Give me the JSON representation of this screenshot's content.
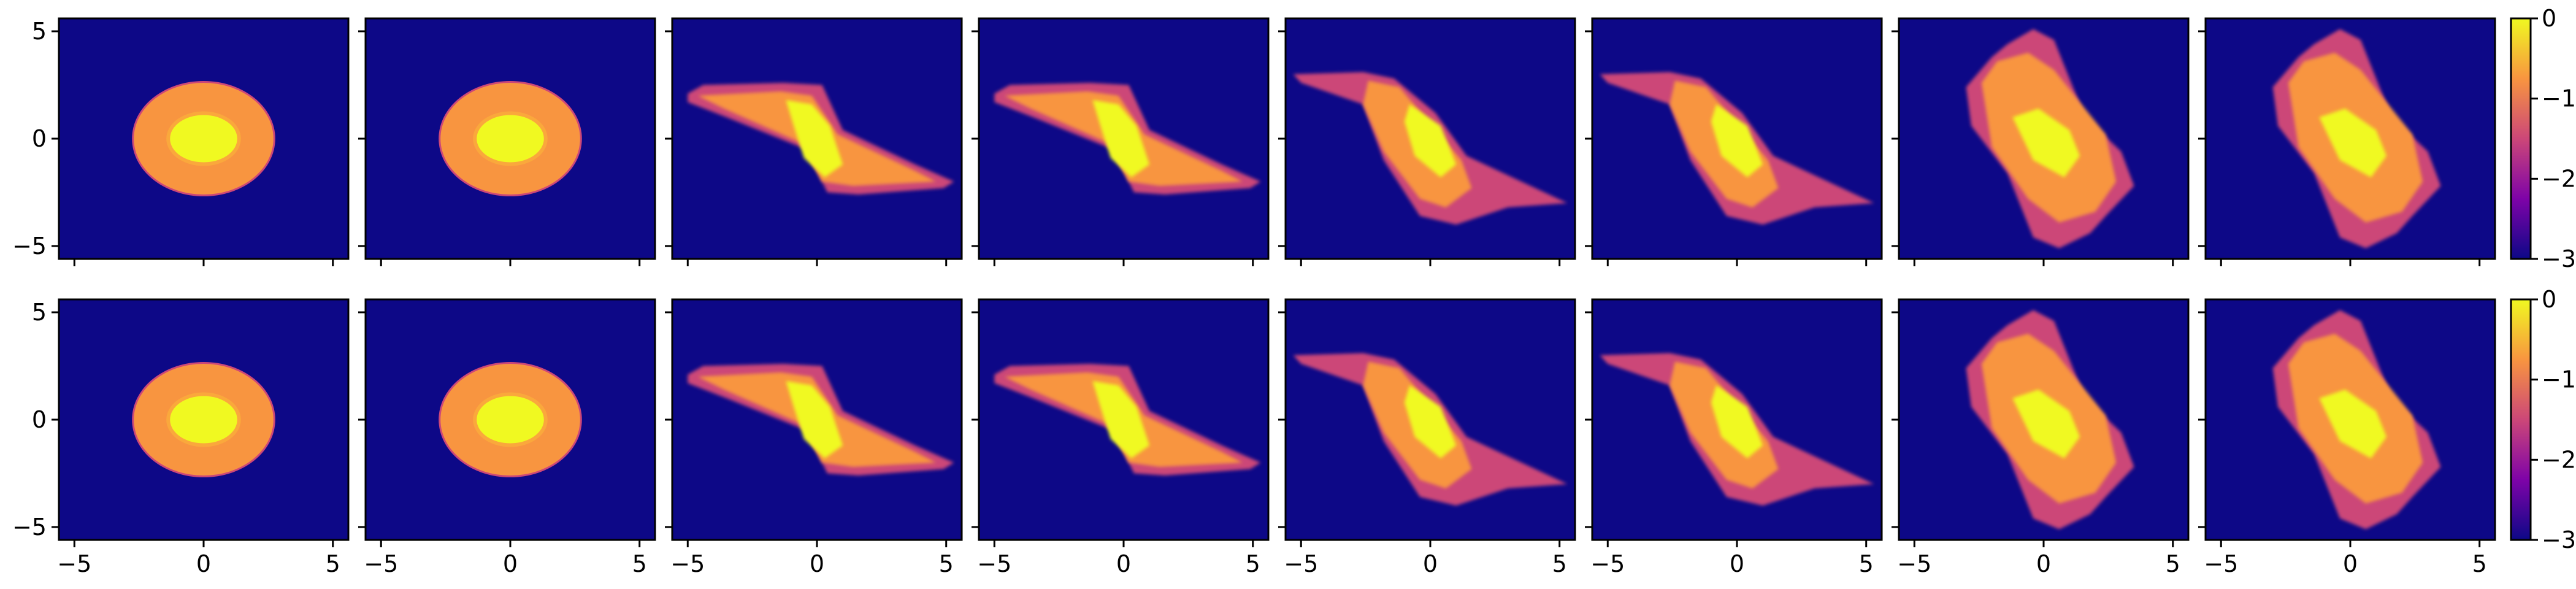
{
  "chart_data": {
    "type": "heatmap",
    "layout": {
      "rows": 2,
      "cols": 8,
      "sharex": true,
      "sharey": true
    },
    "colormap": "plasma",
    "color_stops": [
      "#0d0887",
      "#7e03a8",
      "#cc4778",
      "#f89540",
      "#f0f921"
    ],
    "background_color": "#0d0887",
    "color_scale": {
      "min": -3,
      "max": 0,
      "ticks": [
        0,
        -1,
        -2,
        -3
      ],
      "tick_labels": [
        "0",
        "−1",
        "−2",
        "−3"
      ]
    },
    "xlim": [
      -5.6,
      5.6
    ],
    "ylim": [
      -5.6,
      5.6
    ],
    "x_ticks": [
      -5,
      0,
      5
    ],
    "x_tick_labels": [
      "−5",
      "0",
      "5"
    ],
    "y_ticks": [
      5,
      0,
      -5
    ],
    "y_tick_labels": [
      "5",
      "0",
      "−5"
    ],
    "panels_per_row": [
      [
        {
          "shape": "disk",
          "outer_radius_x": 2.7,
          "outer_radius_y": 2.6,
          "core_radius_x": 1.3,
          "core_radius_y": 1.1
        },
        {
          "shape": "disk",
          "outer_radius_x": 2.7,
          "outer_radius_y": 2.6,
          "core_radius_x": 1.3,
          "core_radius_y": 1.1
        },
        {
          "shape": "sheared",
          "extent_x": [
            -5,
            5.3
          ],
          "extent_y": [
            -2.7,
            2.7
          ],
          "tilt": "falling"
        },
        {
          "shape": "sheared",
          "extent_x": [
            -4.8,
            5.3
          ],
          "extent_y": [
            -2.7,
            2.7
          ],
          "tilt": "falling"
        },
        {
          "shape": "rotated-block",
          "extent_x": [
            -5.3,
            5.3
          ],
          "extent_y": [
            -4,
            3.1
          ],
          "tilt": "falling"
        },
        {
          "shape": "rotated-block",
          "extent_x": [
            -4.8,
            5.3
          ],
          "extent_y": [
            -4,
            3.1
          ],
          "tilt": "falling"
        },
        {
          "shape": "rotated-block",
          "extent_x": [
            -3,
            3.5
          ],
          "extent_y": [
            -5.1,
            5.1
          ],
          "tilt": "falling"
        },
        {
          "shape": "rotated-block",
          "extent_x": [
            -3,
            3.5
          ],
          "extent_y": [
            -5.1,
            5.1
          ],
          "tilt": "falling"
        }
      ],
      [
        {
          "shape": "disk",
          "outer_radius_x": 2.7,
          "outer_radius_y": 2.6,
          "core_radius_x": 1.3,
          "core_radius_y": 1.1
        },
        {
          "shape": "disk",
          "outer_radius_x": 2.7,
          "outer_radius_y": 2.6,
          "core_radius_x": 1.3,
          "core_radius_y": 1.1
        },
        {
          "shape": "sheared",
          "extent_x": [
            -5,
            5.3
          ],
          "extent_y": [
            -2.7,
            2.7
          ],
          "tilt": "falling"
        },
        {
          "shape": "sheared",
          "extent_x": [
            -4.8,
            5.3
          ],
          "extent_y": [
            -2.7,
            2.7
          ],
          "tilt": "falling"
        },
        {
          "shape": "rotated-block",
          "extent_x": [
            -5.3,
            5.3
          ],
          "extent_y": [
            -4,
            3.1
          ],
          "tilt": "falling"
        },
        {
          "shape": "rotated-block",
          "extent_x": [
            -4.8,
            5.3
          ],
          "extent_y": [
            -4,
            3.1
          ],
          "tilt": "falling"
        },
        {
          "shape": "rotated-block",
          "extent_x": [
            -3,
            3.5
          ],
          "extent_y": [
            -5.1,
            5.1
          ],
          "tilt": "falling"
        },
        {
          "shape": "rotated-block",
          "extent_x": [
            -3,
            3.5
          ],
          "extent_y": [
            -5.1,
            5.1
          ],
          "tilt": "falling"
        }
      ]
    ]
  }
}
